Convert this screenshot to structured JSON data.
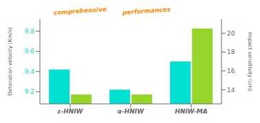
{
  "chart_data": {
    "type": "bar",
    "categories": [
      "ε-HNIW",
      "α-HNIW",
      "HNIW-MA"
    ],
    "series": [
      {
        "color": "#00e0d0",
        "values": [
          9.42,
          9.22,
          9.5
        ]
      },
      {
        "color": "#96d62a",
        "values": [
          13.5,
          13.5,
          20.5
        ],
        "axis": "y2"
      }
    ],
    "ylim": [
      9.08,
      9.92
    ],
    "yticks": [
      9.2,
      9.4,
      9.6,
      9.8
    ],
    "y2lim": [
      12.5,
      21.5
    ],
    "y2ticks": [
      14,
      16,
      18,
      20
    ],
    "ylabel": "Detonation velocity (Km/s)",
    "y2label": "Impact sensitivity (cm)",
    "annotations": [
      "comprehensive",
      "performances"
    ],
    "grid": false
  }
}
